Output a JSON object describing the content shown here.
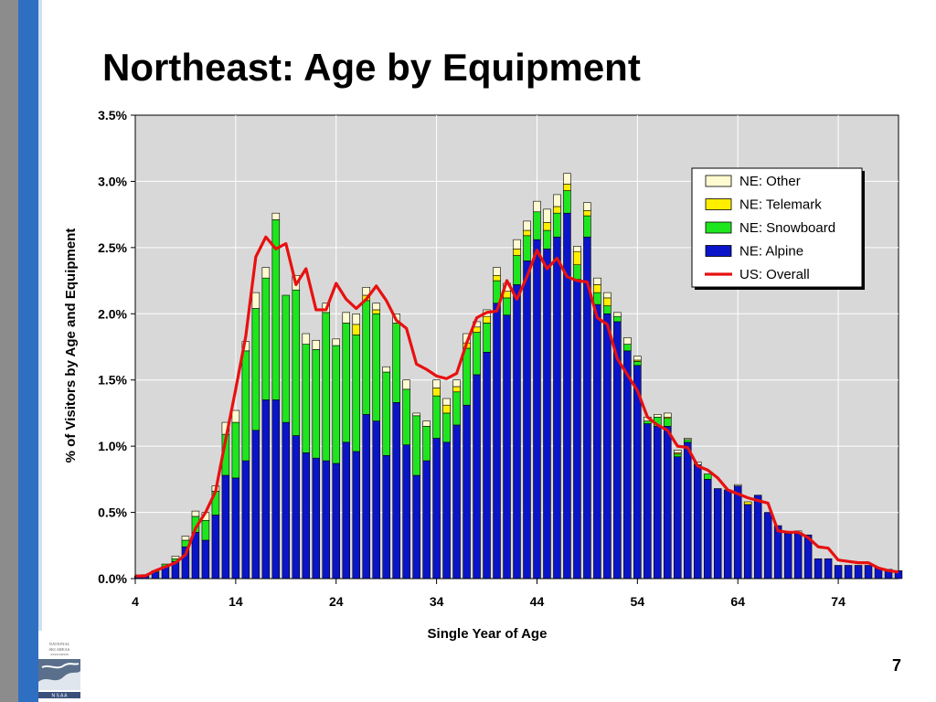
{
  "slide": {
    "title": "Northeast: Age by Equipment",
    "page_number": "7",
    "logo_lines": [
      "NATIONAL",
      "SKI AREAS",
      "ASSOCIATION",
      "N S A A"
    ]
  },
  "colors": {
    "alpine": "#0a14c8",
    "snowboard": "#1ee61e",
    "telemark": "#ffee00",
    "other": "#fffad0",
    "us_overall": "#e81010",
    "plot_bg": "#d8d8d8",
    "grid": "#ffffff"
  },
  "chart_data": {
    "type": "bar",
    "stacked": true,
    "xlabel": "Single Year of Age",
    "ylabel": "% of Visitors by Age and Equipment",
    "xlim": [
      4,
      80
    ],
    "ylim": [
      0,
      3.5
    ],
    "x_ticks": [
      4,
      14,
      24,
      34,
      44,
      54,
      64,
      74
    ],
    "x_tick_labels": [
      "4",
      "14",
      "24",
      "34",
      "44",
      "54",
      "64",
      "74"
    ],
    "y_ticks": [
      0,
      0.5,
      1.0,
      1.5,
      2.0,
      2.5,
      3.0,
      3.5
    ],
    "y_tick_labels": [
      "0.0%",
      "0.5%",
      "1.0%",
      "1.5%",
      "2.0%",
      "2.5%",
      "3.0%",
      "3.5%"
    ],
    "grid": true,
    "legend_position": "top-right",
    "x": [
      4,
      5,
      6,
      7,
      8,
      9,
      10,
      11,
      12,
      13,
      14,
      15,
      16,
      17,
      18,
      19,
      20,
      21,
      22,
      23,
      24,
      25,
      26,
      27,
      28,
      29,
      30,
      31,
      32,
      33,
      34,
      35,
      36,
      37,
      38,
      39,
      40,
      41,
      42,
      43,
      44,
      45,
      46,
      47,
      48,
      49,
      50,
      51,
      52,
      53,
      54,
      55,
      56,
      57,
      58,
      59,
      60,
      61,
      62,
      63,
      64,
      65,
      66,
      67,
      68,
      69,
      70,
      71,
      72,
      73,
      74,
      75,
      76,
      77,
      78,
      79,
      80
    ],
    "series": [
      {
        "name": "NE: Alpine",
        "color": "#0a14c8",
        "values": [
          0.02,
          0.03,
          0.05,
          0.09,
          0.13,
          0.24,
          0.35,
          0.29,
          0.48,
          0.78,
          0.76,
          0.89,
          1.12,
          1.35,
          1.35,
          1.18,
          1.08,
          0.95,
          0.91,
          0.89,
          0.87,
          1.03,
          0.96,
          1.24,
          1.19,
          0.93,
          1.33,
          1.01,
          0.78,
          0.89,
          1.06,
          1.03,
          1.16,
          1.31,
          1.54,
          1.71,
          2.08,
          1.99,
          2.22,
          2.4,
          2.56,
          2.49,
          2.58,
          2.76,
          2.26,
          2.58,
          2.07,
          2.0,
          1.94,
          1.72,
          1.61,
          1.17,
          1.15,
          1.15,
          0.92,
          1.03,
          0.86,
          0.75,
          0.68,
          0.67,
          0.7,
          0.56,
          0.63,
          0.5,
          0.4,
          0.34,
          0.34,
          0.33,
          0.15,
          0.15,
          0.1,
          0.1,
          0.1,
          0.1,
          0.08,
          0.07,
          0.06
        ]
      },
      {
        "name": "NE: Snowboard",
        "color": "#1ee61e",
        "values": [
          0.0,
          0.0,
          0.01,
          0.02,
          0.02,
          0.05,
          0.12,
          0.15,
          0.18,
          0.31,
          0.42,
          0.83,
          0.92,
          0.92,
          1.36,
          0.96,
          1.1,
          0.82,
          0.82,
          1.12,
          0.89,
          0.9,
          0.88,
          0.86,
          0.81,
          0.63,
          0.6,
          0.42,
          0.45,
          0.26,
          0.32,
          0.22,
          0.25,
          0.43,
          0.32,
          0.22,
          0.17,
          0.13,
          0.22,
          0.19,
          0.21,
          0.14,
          0.18,
          0.17,
          0.11,
          0.16,
          0.09,
          0.06,
          0.04,
          0.05,
          0.03,
          0.02,
          0.07,
          0.06,
          0.02,
          0.02,
          0.0,
          0.04,
          0.0,
          0.0,
          0.0,
          0.0,
          0.0,
          0.0,
          0.0,
          0.0,
          0.0,
          0.0,
          0.0,
          0.0,
          0.0,
          0.0,
          0.0,
          0.0,
          0.0,
          0.0,
          0.0
        ]
      },
      {
        "name": "NE: Telemark",
        "color": "#ffee00",
        "values": [
          0.0,
          0.0,
          0.0,
          0.0,
          0.0,
          0.0,
          0.0,
          0.0,
          0.0,
          0.0,
          0.0,
          0.0,
          0.0,
          0.0,
          0.0,
          0.0,
          0.0,
          0.0,
          0.0,
          0.0,
          0.0,
          0.0,
          0.08,
          0.04,
          0.03,
          0.0,
          0.0,
          0.0,
          0.0,
          0.0,
          0.06,
          0.06,
          0.04,
          0.04,
          0.04,
          0.05,
          0.04,
          0.05,
          0.05,
          0.04,
          0.0,
          0.06,
          0.05,
          0.05,
          0.1,
          0.04,
          0.06,
          0.06,
          0.0,
          0.0,
          0.01,
          0.0,
          0.0,
          0.01,
          0.01,
          0.0,
          0.0,
          0.0,
          0.0,
          0.0,
          0.0,
          0.02,
          0.0,
          0.0,
          0.0,
          0.0,
          0.0,
          0.0,
          0.0,
          0.0,
          0.0,
          0.0,
          0.0,
          0.0,
          0.0,
          0.0,
          0.0
        ]
      },
      {
        "name": "NE: Other",
        "color": "#fffad0",
        "values": [
          0.0,
          0.0,
          0.0,
          0.0,
          0.02,
          0.03,
          0.04,
          0.06,
          0.04,
          0.09,
          0.09,
          0.07,
          0.12,
          0.08,
          0.05,
          0.0,
          0.11,
          0.08,
          0.07,
          0.07,
          0.05,
          0.08,
          0.08,
          0.06,
          0.05,
          0.04,
          0.07,
          0.07,
          0.02,
          0.04,
          0.06,
          0.05,
          0.05,
          0.07,
          0.04,
          0.05,
          0.06,
          0.06,
          0.07,
          0.07,
          0.08,
          0.1,
          0.09,
          0.08,
          0.04,
          0.06,
          0.05,
          0.04,
          0.03,
          0.05,
          0.03,
          0.03,
          0.02,
          0.03,
          0.02,
          0.01,
          0.02,
          0.0,
          0.0,
          0.0,
          0.01,
          0.0,
          0.0,
          0.0,
          0.0,
          0.0,
          0.02,
          0.0,
          0.0,
          0.0,
          0.0,
          0.0,
          0.0,
          0.0,
          0.0,
          0.0,
          0.0
        ]
      },
      {
        "name": "US: Overall",
        "color": "#e81010",
        "type": "line",
        "values": [
          0.02,
          0.02,
          0.06,
          0.09,
          0.12,
          0.18,
          0.38,
          0.5,
          0.66,
          1.05,
          1.43,
          1.83,
          2.43,
          2.58,
          2.49,
          2.53,
          2.22,
          2.34,
          2.03,
          2.03,
          2.23,
          2.11,
          2.04,
          2.11,
          2.21,
          2.1,
          1.95,
          1.89,
          1.62,
          1.58,
          1.53,
          1.51,
          1.55,
          1.78,
          1.97,
          2.01,
          2.02,
          2.25,
          2.11,
          2.28,
          2.48,
          2.34,
          2.42,
          2.28,
          2.25,
          2.24,
          1.97,
          1.92,
          1.66,
          1.54,
          1.42,
          1.22,
          1.16,
          1.12,
          1.0,
          0.99,
          0.85,
          0.82,
          0.76,
          0.67,
          0.64,
          0.61,
          0.59,
          0.57,
          0.36,
          0.35,
          0.35,
          0.31,
          0.24,
          0.23,
          0.14,
          0.13,
          0.12,
          0.12,
          0.08,
          0.06,
          0.05
        ]
      }
    ]
  }
}
